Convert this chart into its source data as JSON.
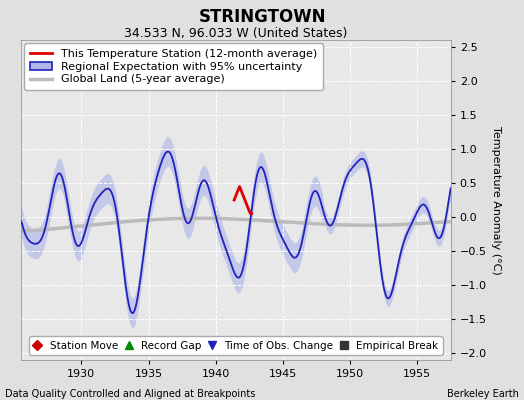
{
  "title": "STRINGTOWN",
  "subtitle": "34.533 N, 96.033 W (United States)",
  "ylabel": "Temperature Anomaly (°C)",
  "xlabel_left": "Data Quality Controlled and Aligned at Breakpoints",
  "xlabel_right": "Berkeley Earth",
  "xlim": [
    1925.5,
    1957.5
  ],
  "ylim": [
    -2.1,
    2.6
  ],
  "yticks": [
    -2,
    -1.5,
    -1,
    -0.5,
    0,
    0.5,
    1,
    1.5,
    2,
    2.5
  ],
  "xticks": [
    1930,
    1935,
    1940,
    1945,
    1950,
    1955
  ],
  "bg_color": "#e0e0e0",
  "plot_bg_color": "#e8e8e8",
  "grid_color": "#ffffff",
  "regional_line_color": "#2222bb",
  "regional_fill_color": "#b0b8e8",
  "station_line_color": "#dd0000",
  "global_line_color": "#bbbbbb",
  "title_fontsize": 12,
  "subtitle_fontsize": 9,
  "legend_fontsize": 8,
  "tick_fontsize": 8,
  "annotation_fontsize": 7,
  "legend1_items": [
    {
      "label": "This Temperature Station (12-month average)",
      "color": "#dd0000",
      "lw": 2
    },
    {
      "label": "Regional Expectation with 95% uncertainty",
      "color": "#2222bb",
      "fill_color": "#b0b8e8",
      "lw": 1.5
    },
    {
      "label": "Global Land (5-year average)",
      "color": "#bbbbbb",
      "lw": 2.5
    }
  ],
  "legend2_items": [
    {
      "label": "Station Move",
      "marker": "D",
      "color": "#cc0000"
    },
    {
      "label": "Record Gap",
      "marker": "^",
      "color": "#008800"
    },
    {
      "label": "Time of Obs. Change",
      "marker": "v",
      "color": "#2222bb"
    },
    {
      "label": "Empirical Break",
      "marker": "s",
      "color": "#333333"
    }
  ]
}
